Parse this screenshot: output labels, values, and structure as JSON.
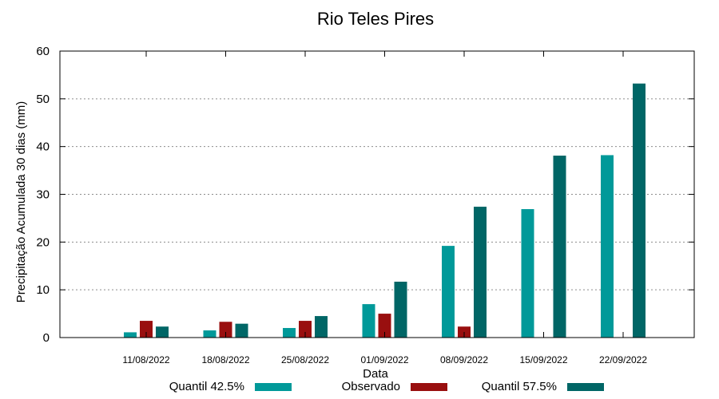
{
  "chart_data": {
    "type": "bar",
    "title": "Rio Teles Pires",
    "xlabel": "Data",
    "ylabel": "Precipitação Acumulada 30 dias (mm)",
    "ylim": [
      0,
      60
    ],
    "yticks": [
      0,
      10,
      20,
      30,
      40,
      50,
      60
    ],
    "grid": true,
    "legend_position": "bottom",
    "categories": [
      "11/08/2022",
      "18/08/2022",
      "25/08/2022",
      "01/09/2022",
      "08/09/2022",
      "15/09/2022",
      "22/09/2022"
    ],
    "series": [
      {
        "name": "Quantil 42.5%",
        "color": "#009999",
        "values": [
          1.1,
          1.5,
          2.0,
          7.0,
          19.2,
          26.9,
          38.2
        ]
      },
      {
        "name": "Observado",
        "color": "#990f0f",
        "values": [
          3.5,
          3.3,
          3.5,
          5.0,
          2.3,
          null,
          null
        ]
      },
      {
        "name": "Quantil 57.5%",
        "color": "#006666",
        "values": [
          2.3,
          2.9,
          4.5,
          11.7,
          27.4,
          38.1,
          53.2
        ]
      }
    ]
  }
}
